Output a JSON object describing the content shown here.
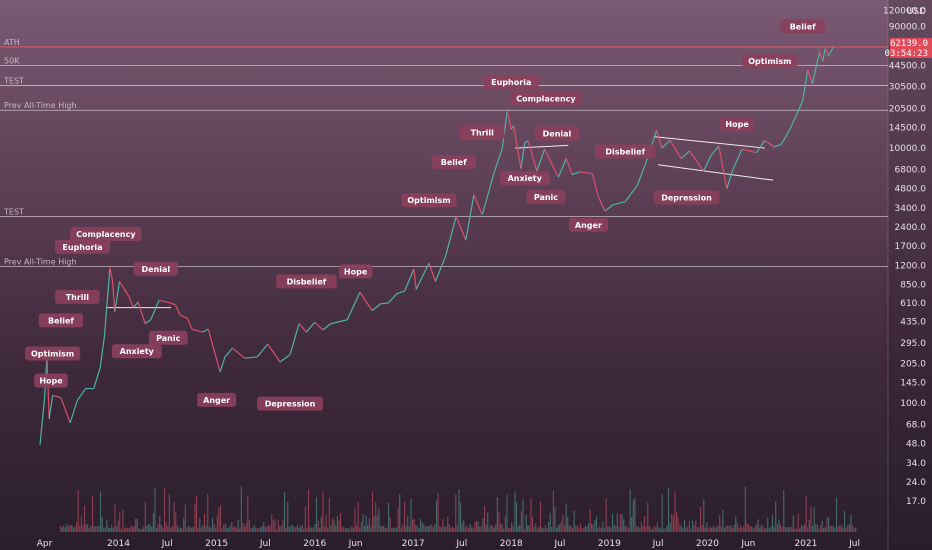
{
  "chart_data": {
    "type": "line",
    "title": "",
    "ylabel": "USD",
    "scale": "log",
    "ylim": [
      14.5,
      145000
    ],
    "y_ticks": [
      "145000.0",
      "120000.0",
      "90000.0",
      "44500.0",
      "30500.0",
      "20500.0",
      "14500.0",
      "10000.0",
      "6800.0",
      "4800.0",
      "3400.0",
      "2400.0",
      "1700.0",
      "1200.0",
      "850.0",
      "610.0",
      "435.0",
      "295.0",
      "205.0",
      "145.0",
      "100.0",
      "68.0",
      "48.0",
      "34.0",
      "24.0",
      "17.0"
    ],
    "x_ticks": [
      "Apr",
      "2014",
      "Jul",
      "2015",
      "Jul",
      "2016",
      "Jun",
      "2017",
      "Jul",
      "2018",
      "Jul",
      "2019",
      "Jul",
      "2020",
      "Jun",
      "2021",
      "Jul"
    ],
    "x_range": [
      "2013-03-15",
      "2021-08-20"
    ],
    "last_price": "62139.0",
    "countdown": "03:54:23",
    "price_color": "#e04a5a",
    "series": [
      {
        "points": [
          [
            "2013-03-15",
            47
          ],
          [
            "2013-04-01",
            110
          ],
          [
            "2013-04-10",
            230
          ],
          [
            "2013-04-18",
            75
          ],
          [
            "2013-05-01",
            115
          ],
          [
            "2013-06-01",
            110
          ],
          [
            "2013-07-05",
            70
          ],
          [
            "2013-08-01",
            105
          ],
          [
            "2013-09-01",
            130
          ],
          [
            "2013-10-01",
            130
          ],
          [
            "2013-10-25",
            190
          ],
          [
            "2013-11-10",
            340
          ],
          [
            "2013-11-30",
            1150
          ],
          [
            "2013-12-10",
            900
          ],
          [
            "2013-12-18",
            520
          ],
          [
            "2014-01-05",
            900
          ],
          [
            "2014-02-10",
            680
          ],
          [
            "2014-02-25",
            560
          ],
          [
            "2014-03-15",
            620
          ],
          [
            "2014-04-10",
            420
          ],
          [
            "2014-05-01",
            450
          ],
          [
            "2014-06-01",
            640
          ],
          [
            "2014-07-01",
            620
          ],
          [
            "2014-08-01",
            590
          ],
          [
            "2014-08-18",
            490
          ],
          [
            "2014-09-15",
            460
          ],
          [
            "2014-10-01",
            380
          ],
          [
            "2014-11-10",
            360
          ],
          [
            "2014-12-01",
            380
          ],
          [
            "2015-01-14",
            175
          ],
          [
            "2015-02-01",
            230
          ],
          [
            "2015-03-01",
            270
          ],
          [
            "2015-04-15",
            225
          ],
          [
            "2015-06-01",
            230
          ],
          [
            "2015-07-10",
            290
          ],
          [
            "2015-08-25",
            210
          ],
          [
            "2015-10-01",
            240
          ],
          [
            "2015-11-04",
            420
          ],
          [
            "2015-12-01",
            360
          ],
          [
            "2016-01-01",
            430
          ],
          [
            "2016-02-01",
            375
          ],
          [
            "2016-03-01",
            420
          ],
          [
            "2016-05-01",
            450
          ],
          [
            "2016-06-17",
            740
          ],
          [
            "2016-08-02",
            530
          ],
          [
            "2016-09-01",
            600
          ],
          [
            "2016-10-01",
            610
          ],
          [
            "2016-11-01",
            720
          ],
          [
            "2016-12-01",
            760
          ],
          [
            "2017-01-04",
            1130
          ],
          [
            "2017-01-12",
            780
          ],
          [
            "2017-03-01",
            1250
          ],
          [
            "2017-03-25",
            900
          ],
          [
            "2017-05-01",
            1400
          ],
          [
            "2017-06-10",
            2900
          ],
          [
            "2017-07-16",
            1900
          ],
          [
            "2017-08-15",
            4300
          ],
          [
            "2017-09-15",
            3000
          ],
          [
            "2017-11-01",
            6700
          ],
          [
            "2017-11-28",
            9800
          ],
          [
            "2017-12-17",
            19500
          ],
          [
            "2018-01-01",
            14000
          ],
          [
            "2018-01-10",
            15000
          ],
          [
            "2018-02-06",
            6900
          ],
          [
            "2018-02-20",
            11000
          ],
          [
            "2018-03-05",
            11400
          ],
          [
            "2018-04-06",
            6600
          ],
          [
            "2018-05-05",
            9800
          ],
          [
            "2018-06-25",
            5900
          ],
          [
            "2018-07-25",
            8300
          ],
          [
            "2018-08-15",
            6200
          ],
          [
            "2018-09-15",
            6500
          ],
          [
            "2018-10-30",
            6300
          ],
          [
            "2018-11-20",
            4200
          ],
          [
            "2018-12-15",
            3200
          ],
          [
            "2019-01-15",
            3600
          ],
          [
            "2019-03-01",
            3800
          ],
          [
            "2019-04-15",
            5100
          ],
          [
            "2019-05-20",
            8000
          ],
          [
            "2019-06-26",
            13800
          ],
          [
            "2019-07-15",
            10000
          ],
          [
            "2019-08-15",
            11500
          ],
          [
            "2019-09-25",
            8300
          ],
          [
            "2019-10-26",
            9500
          ],
          [
            "2019-12-17",
            6600
          ],
          [
            "2020-01-15",
            8800
          ],
          [
            "2020-02-12",
            10400
          ],
          [
            "2020-03-13",
            4800
          ],
          [
            "2020-04-01",
            6500
          ],
          [
            "2020-05-08",
            9800
          ],
          [
            "2020-06-15",
            9400
          ],
          [
            "2020-07-01",
            9200
          ],
          [
            "2020-08-01",
            11500
          ],
          [
            "2020-09-05",
            10200
          ],
          [
            "2020-10-01",
            10700
          ],
          [
            "2020-11-01",
            13800
          ],
          [
            "2020-12-01",
            19000
          ],
          [
            "2020-12-20",
            23500
          ],
          [
            "2021-01-08",
            41000
          ],
          [
            "2021-01-25",
            32000
          ],
          [
            "2021-02-21",
            57000
          ],
          [
            "2021-03-05",
            48000
          ],
          [
            "2021-03-14",
            61000
          ],
          [
            "2021-03-25",
            52500
          ],
          [
            "2021-04-13",
            62139
          ]
        ]
      }
    ],
    "horizontal_lines": [
      {
        "label": "ATH",
        "value": 62139,
        "color": "#ff5c6c"
      },
      {
        "label": "50K",
        "value": 44500,
        "color": "#d9d0d6"
      },
      {
        "label": "TEST",
        "value": 31000,
        "color": "#d9d0d6"
      },
      {
        "label": "Prev All-Time High",
        "value": 19800,
        "color": "#d9d0d6"
      },
      {
        "label": "TEST",
        "value": 2900,
        "color": "#d9d0d6"
      },
      {
        "label": "Prev All-Time High",
        "value": 1180,
        "color": "#d9d0d6"
      }
    ],
    "annotations": [
      {
        "text": "Hope",
        "date": "2013-04-25",
        "price": 150
      },
      {
        "text": "Optimism",
        "date": "2013-05-01",
        "price": 245
      },
      {
        "text": "Belief",
        "date": "2013-06-01",
        "price": 445
      },
      {
        "text": "Thrill",
        "date": "2013-08-01",
        "price": 680
      },
      {
        "text": "Euphoria",
        "date": "2013-08-20",
        "price": 1680
      },
      {
        "text": "Complacency",
        "date": "2013-11-15",
        "price": 2120
      },
      {
        "text": "Denial",
        "date": "2014-05-20",
        "price": 1130
      },
      {
        "text": "Anxiety",
        "date": "2014-03-10",
        "price": 255
      },
      {
        "text": "Panic",
        "date": "2014-07-05",
        "price": 325
      },
      {
        "text": "Anger",
        "date": "2015-01-01",
        "price": 106
      },
      {
        "text": "Depression",
        "date": "2015-10-01",
        "price": 99
      },
      {
        "text": "Disbelief",
        "date": "2015-12-01",
        "price": 900
      },
      {
        "text": "Hope",
        "date": "2016-06-01",
        "price": 1080
      },
      {
        "text": "Optimism",
        "date": "2017-03-01",
        "price": 3900
      },
      {
        "text": "Belief",
        "date": "2017-06-01",
        "price": 7800
      },
      {
        "text": "Thrill",
        "date": "2017-09-15",
        "price": 13200
      },
      {
        "text": "Euphoria",
        "date": "2018-01-01",
        "price": 33000
      },
      {
        "text": "Complacency",
        "date": "2018-05-10",
        "price": 24500
      },
      {
        "text": "Denial",
        "date": "2018-06-20",
        "price": 13000
      },
      {
        "text": "Anxiety",
        "date": "2018-02-20",
        "price": 5800
      },
      {
        "text": "Panic",
        "date": "2018-05-10",
        "price": 4150
      },
      {
        "text": "Anger",
        "date": "2018-10-15",
        "price": 2500
      },
      {
        "text": "Depression",
        "date": "2019-10-15",
        "price": 4100
      },
      {
        "text": "Disbelief",
        "date": "2019-03-01",
        "price": 9400
      },
      {
        "text": "Hope",
        "date": "2020-04-20",
        "price": 15400
      },
      {
        "text": "Optimism",
        "date": "2020-08-20",
        "price": 48000
      },
      {
        "text": "Belief",
        "date": "2020-12-20",
        "price": 90000
      }
    ],
    "trendlines": [
      {
        "from": [
          "2013-11-15",
          560
        ],
        "to": [
          "2014-07-15",
          560
        ]
      },
      {
        "from": [
          "2018-01-15",
          10000
        ],
        "to": [
          "2018-08-01",
          10500
        ]
      },
      {
        "from": [
          "2019-06-15",
          12300
        ],
        "to": [
          "2020-08-01",
          10000
        ]
      },
      {
        "from": [
          "2019-07-01",
          7400
        ],
        "to": [
          "2020-09-01",
          5600
        ]
      }
    ]
  }
}
